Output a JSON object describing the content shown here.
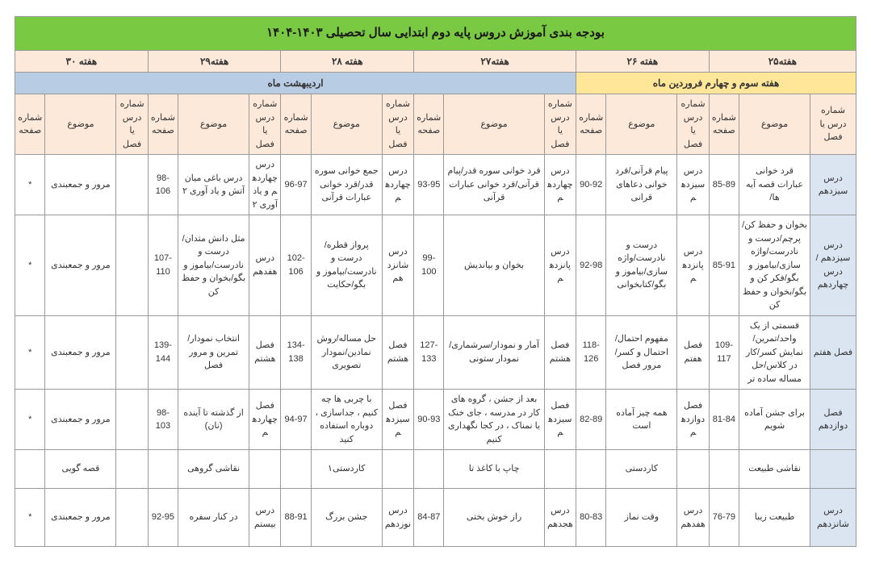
{
  "title": "بودجه بندی آموزش دروس پایه دوم ابتدایی سال تحصیلی ۱۴۰۳-۱۴۰۴",
  "weeks": [
    "هفته۲۵",
    "هفته ۲۶",
    "هفته۲۷",
    "هفته ۲۸",
    "هفته۲۹",
    "هفته ۳۰"
  ],
  "months": {
    "far": "هفته سوم و چهارم فروردین ماه",
    "ord": "اردیبهشت ماه"
  },
  "hdr": {
    "lesson": "شماره درس یا فصل",
    "topic": "موضوع",
    "page": "شماره صفحه"
  },
  "rows": [
    {
      "c1l": "درس سیزدهم",
      "c1t": "قرد خوانی عبارات قصه آیه ها/",
      "c1p": "85-89",
      "c2l": "درس سیزدهم",
      "c2t": "پیام قرآنی/قرد خوانی دعاهای قرانی",
      "c2p": "90-92",
      "c3l": "درس چهاردهم",
      "c3t": "قرد خوانی سوره قدر/پیام قرآنی/قرد خوانی عبارات قرآنی",
      "c3p": "93-95",
      "c4l": "درس چهاردهم",
      "c4t": "جمع خوانی سوره قدر/قرد خوانی عبارات قرآنی",
      "c4p": "96-97",
      "c5l": "درس چهاردهم و یاد آوری ۲",
      "c5t": "درس باغی میان آتش و یاد آوری ۲",
      "c5p": "98-106",
      "c6t": "مرور و جمعبندی",
      "c6p": "*"
    },
    {
      "c1l": "درس سیزدهم /درس چهاردهم",
      "c1t": "بخوان و حفظ کن/پرچم/درست و نادرست/واژه سازی/بیاموز و بگو/فکر کن و بگو/بخوان و حفظ کن",
      "c1p": "85-91",
      "c2l": "درس پانزدهم",
      "c2t": "درست و نادرست/واژه سازی/بیاموز و بگو/کتابخوانی",
      "c2p": "92-98",
      "c3l": "درس پانزدهم",
      "c3t": "بخوان و بیاندیش",
      "c3p": "99-100",
      "c4l": "درس شانزدهم",
      "c4t": "پرواز قطره/درست و نادرست/بیاموز و بگو/حکایت",
      "c4p": "102-106",
      "c5l": "درس هفدهم",
      "c5t": "مثل دانش متدان/درست و نادرست/بیاموز و بگو/بخوان و حفظ کن",
      "c5p": "107-110",
      "c6t": "مرور و جمعبندی",
      "c6p": "*"
    },
    {
      "c1l": "فصل هفتم",
      "c1t": "قسمتی از یک واحد/تمرین/نمایش کسر/کار در کلاس/حل مساله ساده تر",
      "c1p": "109-117",
      "c2l": "فصل هفتم",
      "c2t": "مفهوم احتمال/احتمال و کسر/مرور فصل",
      "c2p": "118-126",
      "c3l": "فصل هشتم",
      "c3t": "آمار و نمودار/سرشماری/نمودار ستونی",
      "c3p": "127-133",
      "c4l": "فصل هشتم",
      "c4t": "حل مساله/روش نمادین/نمودار تصویری",
      "c4p": "134-138",
      "c5l": "فصل هشتم",
      "c5t": "انتخاب نمودار/تمرین و مرور فصل",
      "c5p": "139-144",
      "c6t": "مرور و جمعبندی",
      "c6p": "*"
    },
    {
      "c1l": "فصل دوازدهم",
      "c1t": "برای جشن آماده شویم",
      "c1p": "81-84",
      "c2l": "فصل دوازدهم",
      "c2t": "همه چیز آماده است",
      "c2p": "82-89",
      "c3l": "فصل سیزدهم",
      "c3t": "بعد از جشن ، گروه های کار در مدرسه ، جای خنک یا نمناک ، در کجا نگهداری کنیم",
      "c3p": "90-93",
      "c4l": "فصل سیزدهم",
      "c4t": "با چربی ها چه کنیم ، جداسازی ، دوباره استفاده کنید",
      "c4p": "94-97",
      "c5l": "فصل چهاردهم",
      "c5t": "از گذشته تا آینده (نان)",
      "c5p": "98-103",
      "c6t": "مرور و جمعبندی",
      "c6p": "*"
    },
    {
      "c1l": "",
      "c1t": "نقاشی طبیعت",
      "c1p": "",
      "c2l": "",
      "c2t": "کاردستی",
      "c2p": "",
      "c3l": "",
      "c3t": "چاپ با کاغذ تا",
      "c3p": "",
      "c4l": "",
      "c4t": "کاردستی۱",
      "c4p": "",
      "c5l": "",
      "c5t": "نقاشی گروهی",
      "c5p": "",
      "c6t": "قصه گویی",
      "c6p": ""
    },
    {
      "c1l": "درس شانزدهم",
      "c1t": "طبیعت زیبا",
      "c1p": "76-79",
      "c2l": "درس هفدهم",
      "c2t": "وقت نماز",
      "c2p": "80-83",
      "c3l": "درس هجدهم",
      "c3t": "راز خوش بختی",
      "c3p": "84-87",
      "c4l": "درس نوزدهم",
      "c4t": "جشن بزرگ",
      "c4p": "88-91",
      "c5l": "درس بیستم",
      "c5t": "در کنار سفره",
      "c5p": "92-95",
      "c6t": "مرور و جمعبندی",
      "c6p": "*"
    }
  ]
}
